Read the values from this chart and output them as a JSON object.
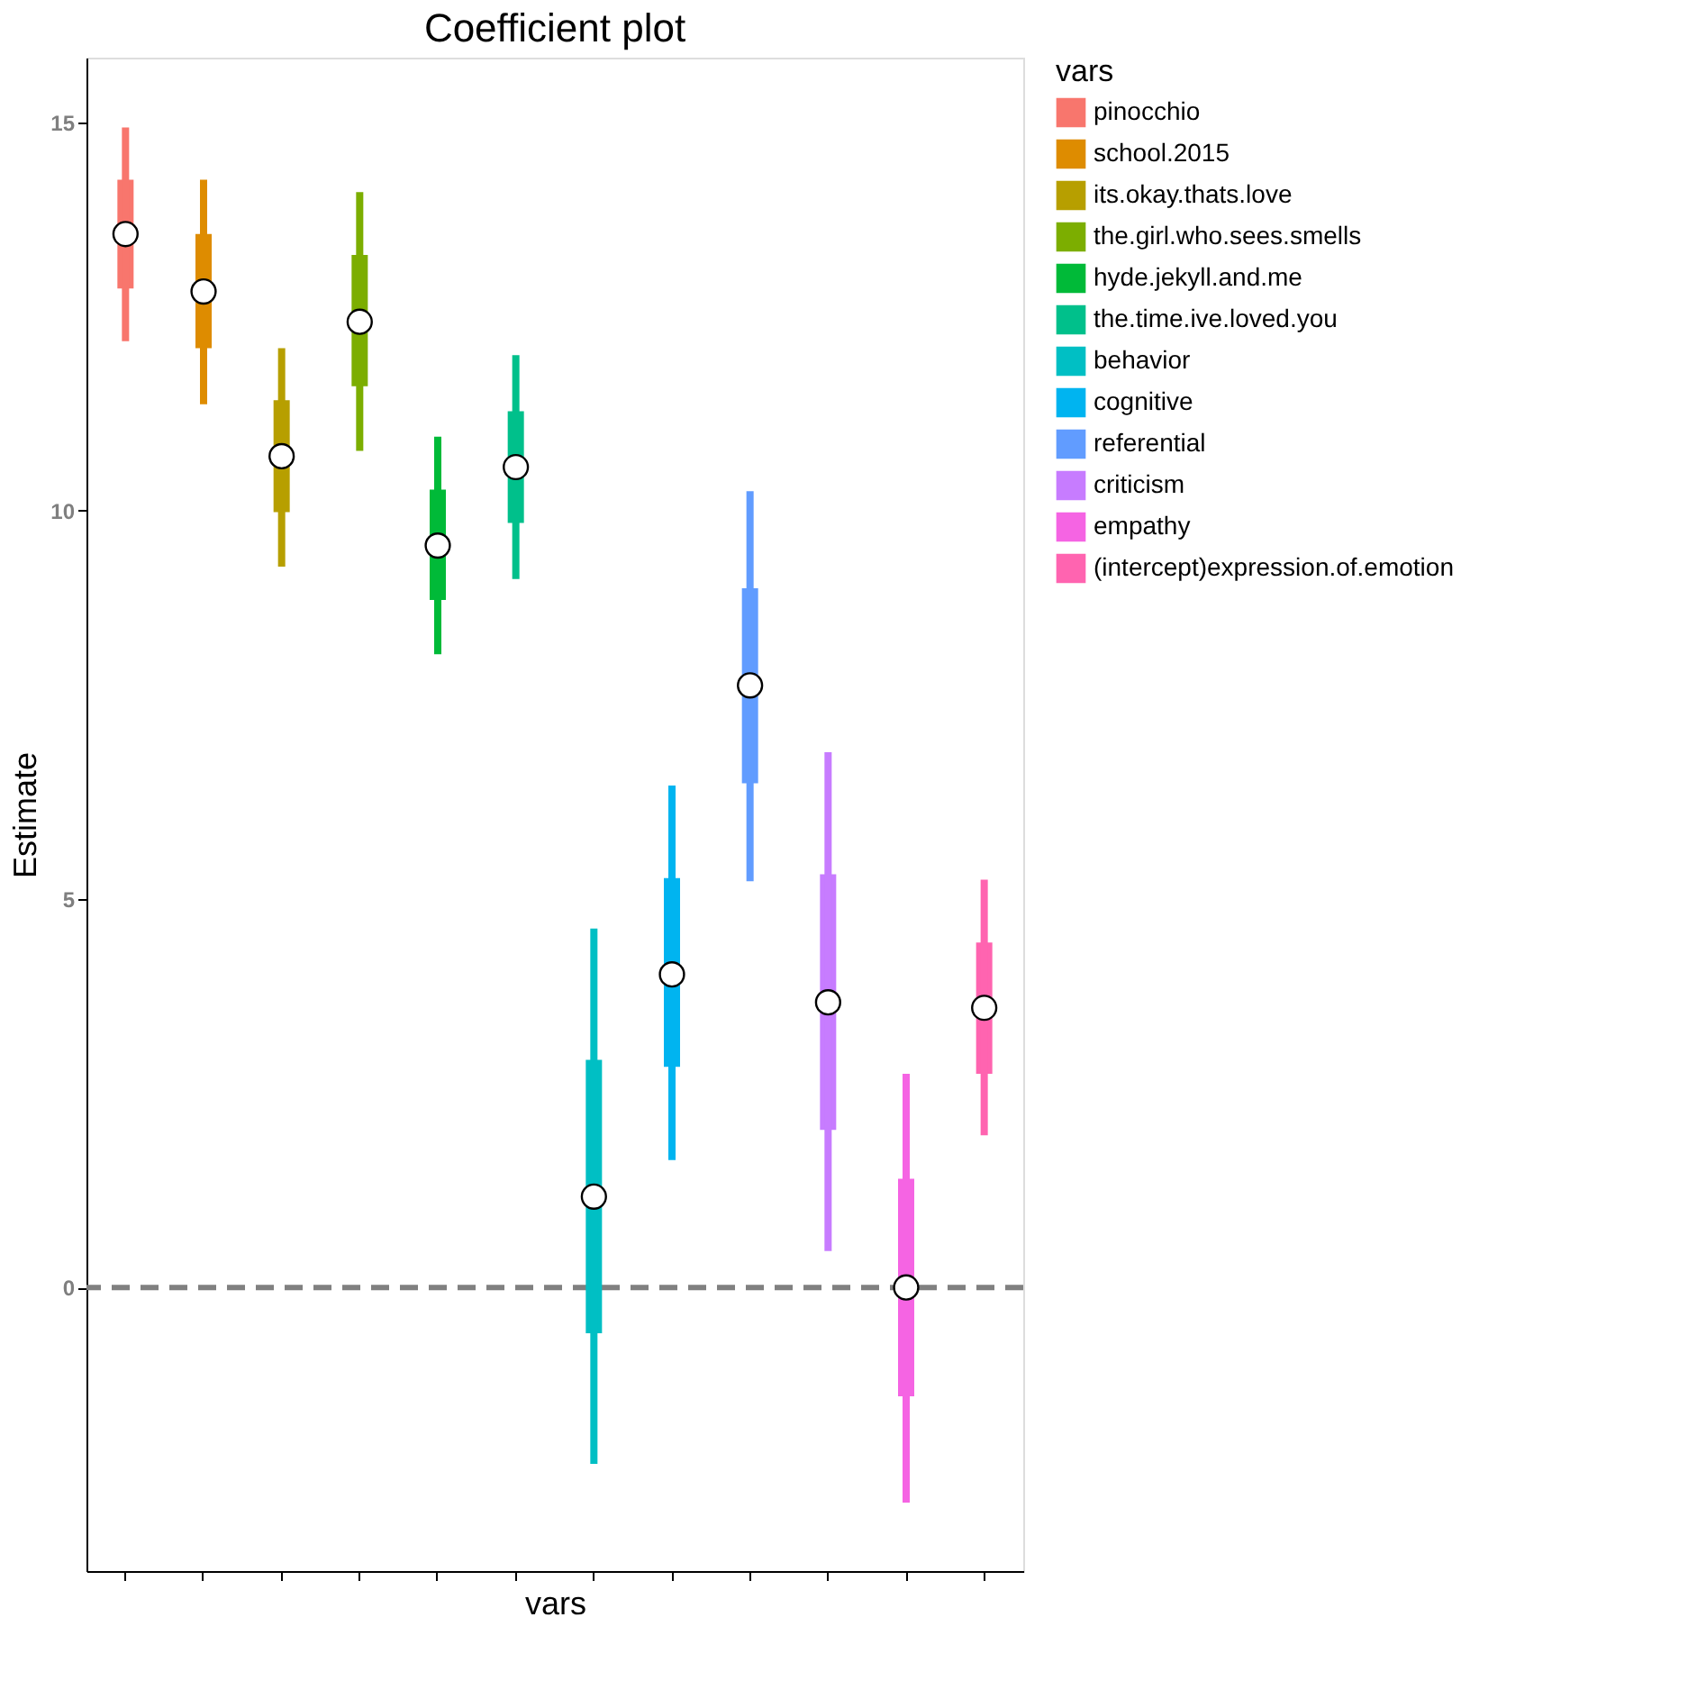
{
  "chart_data": {
    "type": "box",
    "title": "Coefficient plot",
    "xlabel": "vars",
    "ylabel": "Estimate",
    "legend_title": "vars",
    "categories": [
      null,
      null,
      null,
      null,
      null,
      null,
      null,
      null,
      null,
      null,
      null,
      null
    ],
    "series": [
      {
        "name": "pinocchio",
        "color": "#f8766d",
        "boxes": [
          {
            "low": 12.18,
            "q1": 12.86,
            "median": 13.56,
            "q3": 14.26,
            "high": 14.93
          },
          null,
          null,
          null,
          null,
          null,
          null,
          null,
          null,
          null,
          null,
          null
        ]
      },
      {
        "name": "school.2015",
        "color": "#de8c00",
        "boxes": [
          null,
          {
            "low": 11.37,
            "q1": 12.09,
            "median": 12.82,
            "q3": 13.56,
            "high": 14.26
          },
          null,
          null,
          null,
          null,
          null,
          null,
          null,
          null,
          null,
          null
        ]
      },
      {
        "name": "its.okay.thats.love",
        "color": "#b79f00",
        "boxes": [
          null,
          null,
          {
            "low": 9.28,
            "q1": 9.98,
            "median": 10.7,
            "q3": 11.42,
            "high": 12.09
          },
          null,
          null,
          null,
          null,
          null,
          null,
          null,
          null,
          null
        ]
      },
      {
        "name": "the.girl.who.sees.smells",
        "color": "#7cae00",
        "boxes": [
          null,
          null,
          null,
          {
            "low": 10.77,
            "q1": 11.6,
            "median": 12.43,
            "q3": 13.29,
            "high": 14.1
          },
          null,
          null,
          null,
          null,
          null,
          null,
          null,
          null
        ]
      },
      {
        "name": "hyde.jekyll.and.me",
        "color": "#00ba38",
        "boxes": [
          null,
          null,
          null,
          null,
          {
            "low": 8.15,
            "q1": 8.85,
            "median": 9.55,
            "q3": 10.27,
            "high": 10.95
          },
          null,
          null,
          null,
          null,
          null,
          null,
          null
        ]
      },
      {
        "name": "the.time.ive.loved.you",
        "color": "#00c08b",
        "boxes": [
          null,
          null,
          null,
          null,
          null,
          {
            "low": 9.12,
            "q1": 9.84,
            "median": 10.56,
            "q3": 11.28,
            "high": 12.0
          },
          null,
          null,
          null,
          null,
          null,
          null
        ]
      },
      {
        "name": "behavior",
        "color": "#00bfc4",
        "boxes": [
          null,
          null,
          null,
          null,
          null,
          null,
          {
            "low": -2.27,
            "q1": -0.59,
            "median": 1.17,
            "q3": 2.93,
            "high": 4.62
          },
          null,
          null,
          null,
          null,
          null
        ]
      },
      {
        "name": "cognitive",
        "color": "#00b4f0",
        "boxes": [
          null,
          null,
          null,
          null,
          null,
          null,
          null,
          {
            "low": 1.64,
            "q1": 2.84,
            "median": 4.03,
            "q3": 5.27,
            "high": 6.46
          },
          null,
          null,
          null,
          null
        ]
      },
      {
        "name": "referential",
        "color": "#619cff",
        "boxes": [
          null,
          null,
          null,
          null,
          null,
          null,
          null,
          null,
          {
            "low": 5.23,
            "q1": 6.49,
            "median": 7.75,
            "q3": 9.0,
            "high": 10.25
          },
          null,
          null,
          null
        ]
      },
      {
        "name": "criticism",
        "color": "#c77cff",
        "boxes": [
          null,
          null,
          null,
          null,
          null,
          null,
          null,
          null,
          null,
          {
            "low": 0.47,
            "q1": 2.03,
            "median": 3.67,
            "q3": 5.32,
            "high": 6.89
          },
          null,
          null
        ]
      },
      {
        "name": "empathy",
        "color": "#f564e3",
        "boxes": [
          null,
          null,
          null,
          null,
          null,
          null,
          null,
          null,
          null,
          null,
          {
            "low": -2.77,
            "q1": -1.4,
            "median": 0.0,
            "q3": 1.4,
            "high": 2.75
          },
          null
        ]
      },
      {
        "name": "(intercept)expression.of.emotion",
        "color": "#ff64b0",
        "boxes": [
          null,
          null,
          null,
          null,
          null,
          null,
          null,
          null,
          null,
          null,
          null,
          {
            "low": 1.96,
            "q1": 2.75,
            "median": 3.6,
            "q3": 4.44,
            "high": 5.25
          }
        ]
      }
    ],
    "ylim": [
      -3.65,
      15.83
    ],
    "yticks": [
      0,
      5,
      10,
      15
    ],
    "ref_lines": [
      {
        "axis": "y",
        "value": 0,
        "color": "#808080",
        "line_style": "dashed"
      }
    ],
    "tick_labels": "y",
    "grid": false,
    "legend": "right",
    "marker": "circle"
  }
}
